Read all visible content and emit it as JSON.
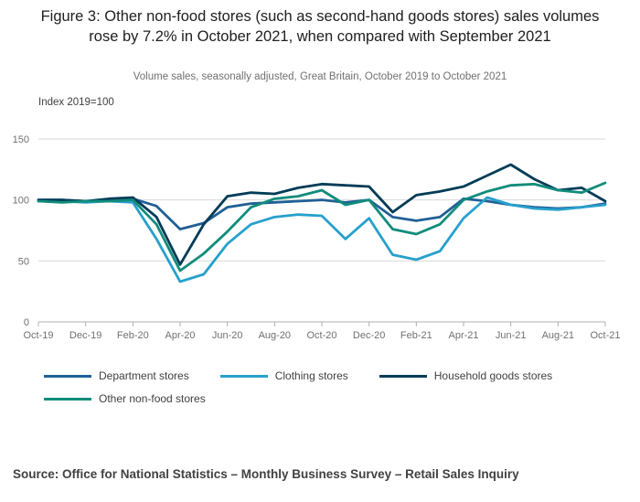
{
  "figure": {
    "title": "Figure 3: Other non-food stores (such as second-hand goods stores) sales volumes rose by 7.2% in October 2021, when compared with September 2021",
    "subtitle": "Volume sales, seasonally adjusted, Great Britain, October 2019 to October 2021",
    "source": "Source: Office for National Statistics – Monthly Business Survey – Retail Sales Inquiry"
  },
  "chart_data": {
    "type": "line",
    "title": "Figure 3: Other non-food stores (such as second-hand goods stores) sales volumes rose by 7.2% in October 2021, when compared with September 2021",
    "subtitle": "Volume sales, seasonally adjusted, Great Britain, October 2019 to October 2021",
    "y_axis_label": "Index 2019=100",
    "ylim": [
      0,
      150
    ],
    "y_ticks": [
      0,
      50,
      100,
      150
    ],
    "grid": true,
    "legend_position": "bottom",
    "x": [
      "Oct-19",
      "Nov-19",
      "Dec-19",
      "Jan-20",
      "Feb-20",
      "Mar-20",
      "Apr-20",
      "May-20",
      "Jun-20",
      "Jul-20",
      "Aug-20",
      "Sep-20",
      "Oct-20",
      "Nov-20",
      "Dec-20",
      "Jan-21",
      "Feb-21",
      "Mar-21",
      "Apr-21",
      "May-21",
      "Jun-21",
      "Jul-21",
      "Aug-21",
      "Sep-21",
      "Oct-21"
    ],
    "x_tick_labels": [
      "Oct-19",
      "Dec-19",
      "Feb-20",
      "Apr-20",
      "Jun-20",
      "Aug-20",
      "Oct-20",
      "Dec-20",
      "Feb-21",
      "Apr-21",
      "Jun-21",
      "Aug-21",
      "Oct-21"
    ],
    "series": [
      {
        "name": "Department stores",
        "color": "#206095",
        "values": [
          100,
          100,
          99,
          100,
          101,
          95,
          76,
          81,
          94,
          97,
          98,
          99,
          100,
          98,
          100,
          86,
          83,
          86,
          101,
          99,
          96,
          94,
          93,
          94,
          97
        ]
      },
      {
        "name": "Clothing stores",
        "color": "#27A0CC",
        "values": [
          99,
          99,
          98,
          99,
          98,
          68,
          33,
          39,
          64,
          80,
          86,
          88,
          87,
          68,
          85,
          55,
          51,
          58,
          85,
          102,
          96,
          93,
          92,
          94,
          96
        ]
      },
      {
        "name": "Household goods stores",
        "color": "#003C57",
        "values": [
          100,
          100,
          99,
          101,
          102,
          86,
          47,
          80,
          103,
          106,
          105,
          110,
          113,
          112,
          111,
          90,
          104,
          107,
          111,
          120,
          129,
          117,
          108,
          110,
          99
        ]
      },
      {
        "name": "Other non-food stores",
        "color": "#118C7B",
        "values": [
          99,
          98,
          99,
          99,
          100,
          80,
          42,
          56,
          74,
          94,
          101,
          103,
          108,
          96,
          100,
          76,
          72,
          80,
          100,
          107,
          112,
          113,
          108,
          106,
          114
        ]
      }
    ]
  }
}
